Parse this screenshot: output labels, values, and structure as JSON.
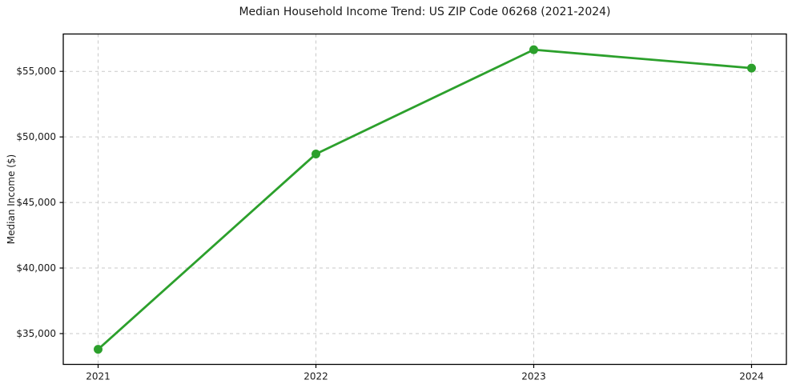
{
  "figure": {
    "background": "#ffffff"
  },
  "chart_data": {
    "type": "line",
    "title": "Median Household Income Trend: US ZIP Code 06268 (2021-2024)",
    "xlabel": "",
    "ylabel": "Median Income ($)",
    "x": [
      2021,
      2022,
      2023,
      2024
    ],
    "x_tick_labels": [
      "2021",
      "2022",
      "2023",
      "2024"
    ],
    "series": [
      {
        "values": [
          33800,
          48700,
          56650,
          55250
        ],
        "color": "#2ca02c",
        "marker": "circle"
      }
    ],
    "y_ticks": [
      35000,
      40000,
      45000,
      50000,
      55000
    ],
    "y_tick_labels": [
      "$35,000",
      "$40,000",
      "$45,000",
      "$50,000",
      "$55,000"
    ],
    "xlim": [
      2020.84,
      2024.16
    ],
    "ylim": [
      32650,
      57850
    ],
    "grid": true,
    "grid_color": "#c9c9c9",
    "grid_style": "dashed",
    "legend": "none",
    "frame_color": "#000000",
    "tick_color": "#000000",
    "text_color": "#1a1a1a"
  }
}
